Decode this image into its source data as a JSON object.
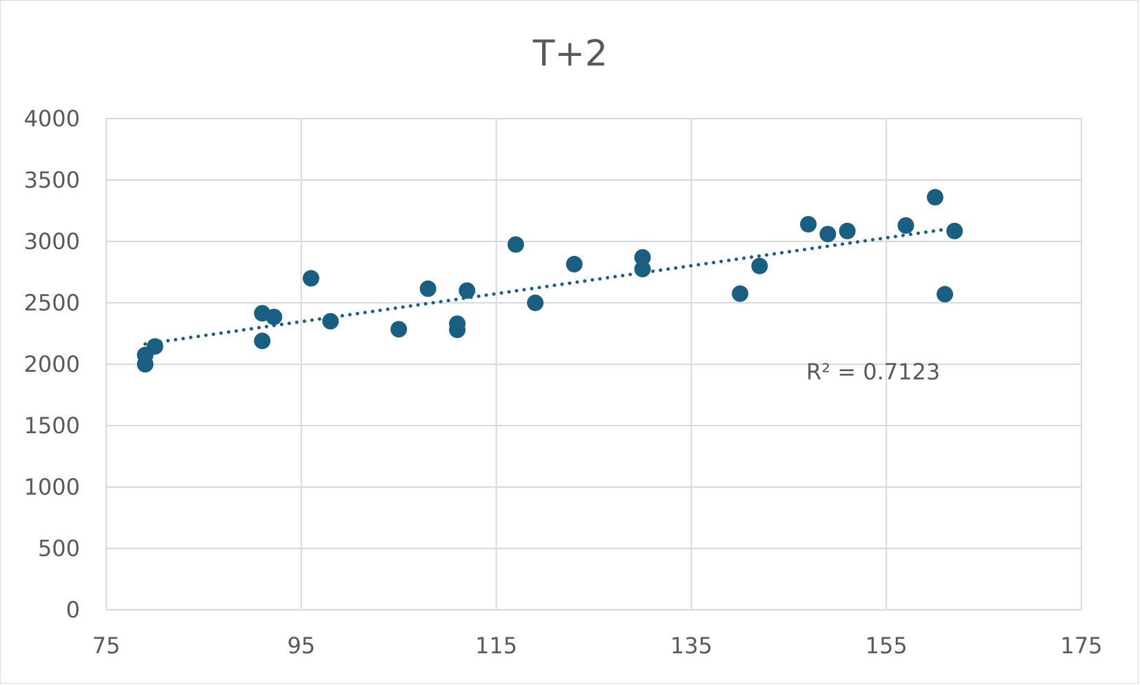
{
  "chart_data": {
    "type": "scatter",
    "title": "T+2",
    "xlabel": "",
    "ylabel": "",
    "xlim": [
      75,
      175
    ],
    "ylim": [
      0,
      4000
    ],
    "x_ticks": [
      "75",
      "95",
      "115",
      "135",
      "155",
      "175"
    ],
    "y_ticks": [
      "0",
      "500",
      "1000",
      "1500",
      "2000",
      "2500",
      "3000",
      "3500",
      "4000"
    ],
    "grid": true,
    "legend": "none",
    "marker_color": "#1a5e82",
    "trendline": {
      "type": "linear",
      "style": "dotted",
      "color": "#1a5e82",
      "x_range": [
        79,
        162.5
      ],
      "y_range": [
        2165,
        3115
      ],
      "r_squared_label": "R² = 0.7123"
    },
    "points": [
      {
        "x": 79,
        "y": 2075
      },
      {
        "x": 79,
        "y": 2000
      },
      {
        "x": 80,
        "y": 2145
      },
      {
        "x": 91,
        "y": 2415
      },
      {
        "x": 91,
        "y": 2190
      },
      {
        "x": 92.2,
        "y": 2385
      },
      {
        "x": 96,
        "y": 2700
      },
      {
        "x": 98,
        "y": 2350
      },
      {
        "x": 105,
        "y": 2285
      },
      {
        "x": 108,
        "y": 2615
      },
      {
        "x": 111,
        "y": 2330
      },
      {
        "x": 111,
        "y": 2280
      },
      {
        "x": 112,
        "y": 2600
      },
      {
        "x": 117,
        "y": 2975
      },
      {
        "x": 119,
        "y": 2500
      },
      {
        "x": 123,
        "y": 2815
      },
      {
        "x": 130,
        "y": 2870
      },
      {
        "x": 130,
        "y": 2775
      },
      {
        "x": 140,
        "y": 2575
      },
      {
        "x": 142,
        "y": 2800
      },
      {
        "x": 147,
        "y": 3140
      },
      {
        "x": 149,
        "y": 3060
      },
      {
        "x": 151,
        "y": 3085
      },
      {
        "x": 157,
        "y": 3130
      },
      {
        "x": 160,
        "y": 3360
      },
      {
        "x": 161,
        "y": 2570
      },
      {
        "x": 162,
        "y": 3085
      }
    ]
  }
}
